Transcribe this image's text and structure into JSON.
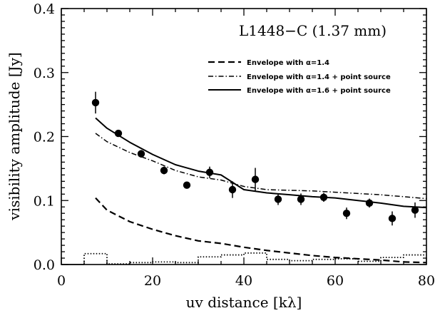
{
  "chart_data": {
    "type": "scatter",
    "title": "L1448−C (1.37 mm)",
    "xlabel": "uv distance [kλ]",
    "ylabel": "visibility amplitude [Jy]",
    "xlim": [
      0,
      80
    ],
    "ylim": [
      0,
      0.4
    ],
    "x_ticks": [
      0,
      20,
      40,
      60,
      80
    ],
    "x_tick_labels": [
      "0",
      "20",
      "40",
      "60",
      "80"
    ],
    "y_ticks": [
      0,
      0.1,
      0.2,
      0.3,
      0.4
    ],
    "y_tick_labels": [
      "0.0",
      "0.1",
      "0.2",
      "0.3",
      "0.4"
    ],
    "grid": false,
    "legend_position": "top-right",
    "observations": {
      "x": [
        7.5,
        12.5,
        17.5,
        22.5,
        27.5,
        32.5,
        37.5,
        42.5,
        47.5,
        52.5,
        57.5,
        62.5,
        67.5,
        72.5,
        77.5
      ],
      "y": [
        0.253,
        0.205,
        0.173,
        0.147,
        0.124,
        0.144,
        0.117,
        0.133,
        0.102,
        0.102,
        0.105,
        0.08,
        0.096,
        0.072,
        0.085
      ],
      "yerr": [
        0.017,
        0.005,
        0.006,
        0.006,
        0.004,
        0.009,
        0.013,
        0.018,
        0.009,
        0.009,
        0.007,
        0.009,
        0.007,
        0.011,
        0.012
      ]
    },
    "series": [
      {
        "name": "Envelope with α=1.4",
        "style": "dashed",
        "x": [
          7.5,
          10,
          15,
          20,
          25,
          30,
          35,
          40,
          45,
          50,
          55,
          60,
          65,
          70,
          75,
          80
        ],
        "y": [
          0.104,
          0.085,
          0.067,
          0.055,
          0.045,
          0.037,
          0.033,
          0.027,
          0.022,
          0.018,
          0.014,
          0.011,
          0.009,
          0.007,
          0.004,
          0.003
        ]
      },
      {
        "name": "Envelope with α=1.4 + point source",
        "style": "dash-dot",
        "x": [
          7.5,
          10,
          15,
          20,
          25,
          30,
          35,
          40,
          45,
          50,
          55,
          60,
          65,
          70,
          75,
          80
        ],
        "y": [
          0.205,
          0.192,
          0.175,
          0.162,
          0.147,
          0.137,
          0.132,
          0.122,
          0.117,
          0.116,
          0.115,
          0.113,
          0.111,
          0.109,
          0.106,
          0.103
        ]
      },
      {
        "name": "Envelope with α=1.6 + point source",
        "style": "solid",
        "x": [
          7.5,
          10,
          15,
          20,
          25,
          30,
          35,
          40,
          45,
          50,
          55,
          60,
          65,
          70,
          75,
          80
        ],
        "y": [
          0.229,
          0.213,
          0.191,
          0.172,
          0.156,
          0.146,
          0.14,
          0.117,
          0.112,
          0.109,
          0.106,
          0.104,
          0.1,
          0.096,
          0.091,
          0.089
        ]
      },
      {
        "name": "",
        "style": "dotted-steps",
        "x": [
          5,
          10,
          15,
          20,
          25,
          30,
          35,
          40,
          45,
          50,
          55,
          60,
          65,
          70,
          75,
          80
        ],
        "y": [
          0.017,
          0.001,
          0.003,
          0.004,
          0.003,
          0.012,
          0.015,
          0.018,
          0.008,
          0.006,
          0.008,
          0.009,
          0.005,
          0.011,
          0.015,
          0.015
        ]
      }
    ]
  }
}
